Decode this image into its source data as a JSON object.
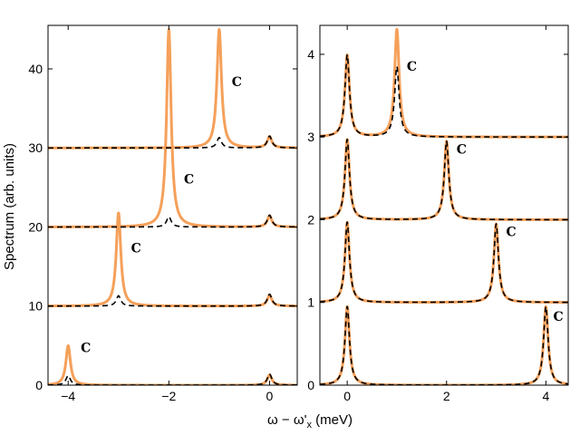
{
  "figure": {
    "ylabel": "Spectrum (arb. units)",
    "xlabel_main": "ω − ω'",
    "xlabel_sub": "x",
    "xlabel_unit": " (meV)"
  },
  "colors": {
    "orange": "#f5a05a",
    "black": "#000000"
  },
  "chart_data": [
    {
      "type": "line",
      "panel": "left",
      "xlim": [
        -4.4,
        0.55
      ],
      "ylim": [
        0,
        45.5
      ],
      "xticks": [
        -4,
        -2,
        0
      ],
      "xtick_labels": [
        "−4",
        "−2",
        "0"
      ],
      "yticks": [
        0,
        10,
        20,
        30,
        40
      ],
      "ytick_labels": [
        "0",
        "10",
        "20",
        "30",
        "40"
      ],
      "series": [
        {
          "style": "orange-solid",
          "baseline": 0,
          "peaks": [
            {
              "x": -4,
              "height": 5
            },
            {
              "x": 0,
              "height": 1.3
            }
          ]
        },
        {
          "style": "black-dashed",
          "baseline": 0,
          "peaks": [
            {
              "x": -4,
              "height": 1.2
            },
            {
              "x": 0,
              "height": 1.4
            }
          ]
        },
        {
          "style": "orange-solid",
          "baseline": 10,
          "peaks": [
            {
              "x": -3,
              "height": 11.8
            },
            {
              "x": 0,
              "height": 1.4
            }
          ]
        },
        {
          "style": "black-dashed",
          "baseline": 10,
          "peaks": [
            {
              "x": -3,
              "height": 1.3
            },
            {
              "x": 0,
              "height": 1.5
            }
          ]
        },
        {
          "style": "orange-solid",
          "baseline": 20,
          "peaks": [
            {
              "x": -2,
              "height": 25
            },
            {
              "x": 0,
              "height": 1.4
            }
          ]
        },
        {
          "style": "black-dashed",
          "baseline": 20,
          "peaks": [
            {
              "x": -2,
              "height": 1.3
            },
            {
              "x": 0,
              "height": 1.5
            }
          ]
        },
        {
          "style": "orange-solid",
          "baseline": 30,
          "peaks": [
            {
              "x": -1,
              "height": 15
            },
            {
              "x": 0,
              "height": 1.4
            }
          ]
        },
        {
          "style": "black-dashed",
          "baseline": 30,
          "peaks": [
            {
              "x": -1,
              "height": 1.3
            },
            {
              "x": 0,
              "height": 1.5
            }
          ]
        }
      ],
      "annotations": [
        {
          "text": "C",
          "x": -3.75,
          "y": 4.2
        },
        {
          "text": "C",
          "x": -2.75,
          "y": 16.8
        },
        {
          "text": "C",
          "x": -1.7,
          "y": 25.5
        },
        {
          "text": "C",
          "x": -0.75,
          "y": 37.8
        }
      ]
    },
    {
      "type": "line",
      "panel": "right",
      "xlim": [
        -0.55,
        4.45
      ],
      "ylim": [
        0,
        4.35
      ],
      "xticks": [
        0,
        2,
        4
      ],
      "xtick_labels": [
        "0",
        "2",
        "4"
      ],
      "yticks": [
        0,
        1,
        2,
        3,
        4
      ],
      "ytick_labels": [
        "0",
        "1",
        "2",
        "3",
        "4"
      ],
      "series": [
        {
          "style": "orange-solid",
          "baseline": 0,
          "peaks": [
            {
              "x": 0,
              "height": 0.95
            },
            {
              "x": 4,
              "height": 0.95
            }
          ]
        },
        {
          "style": "black-dashed",
          "baseline": 0,
          "peaks": [
            {
              "x": 0,
              "height": 0.95
            },
            {
              "x": 4,
              "height": 0.95
            }
          ]
        },
        {
          "style": "orange-solid",
          "baseline": 1,
          "peaks": [
            {
              "x": 0,
              "height": 0.97
            },
            {
              "x": 3,
              "height": 0.95
            }
          ]
        },
        {
          "style": "black-dashed",
          "baseline": 1,
          "peaks": [
            {
              "x": 0,
              "height": 0.97
            },
            {
              "x": 3,
              "height": 0.95
            }
          ]
        },
        {
          "style": "orange-solid",
          "baseline": 2,
          "peaks": [
            {
              "x": 0,
              "height": 0.97
            },
            {
              "x": 2,
              "height": 0.95
            }
          ]
        },
        {
          "style": "black-dashed",
          "baseline": 2,
          "peaks": [
            {
              "x": 0,
              "height": 0.97
            },
            {
              "x": 2,
              "height": 0.95
            }
          ]
        },
        {
          "style": "orange-solid",
          "baseline": 3,
          "peaks": [
            {
              "x": 0,
              "height": 0.99
            },
            {
              "x": 1,
              "height": 1.3
            }
          ]
        },
        {
          "style": "black-dashed",
          "baseline": 3,
          "peaks": [
            {
              "x": 0,
              "height": 0.99
            },
            {
              "x": 1,
              "height": 0.85
            }
          ]
        }
      ],
      "annotations": [
        {
          "text": "C",
          "x": 1.2,
          "y": 3.8
        },
        {
          "text": "C",
          "x": 2.2,
          "y": 2.8
        },
        {
          "text": "C",
          "x": 3.2,
          "y": 1.8
        },
        {
          "text": "C",
          "x": 4.15,
          "y": 0.78
        }
      ]
    }
  ]
}
